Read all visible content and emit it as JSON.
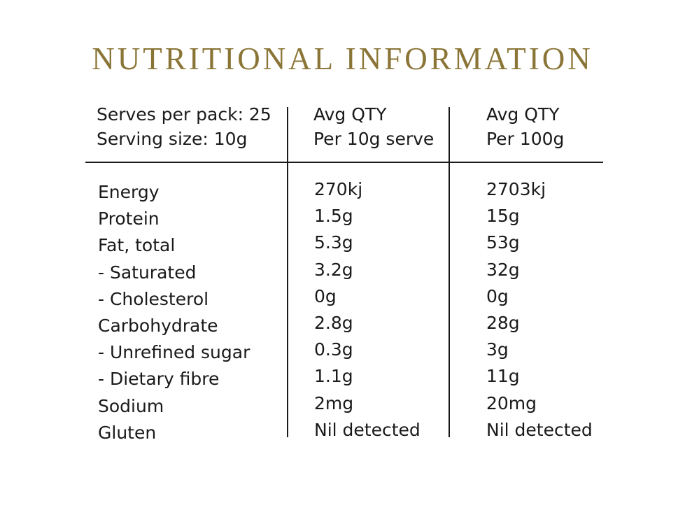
{
  "title": "NUTRITIONAL INFORMATION",
  "header": {
    "col1": [
      "Serves per pack: 25",
      "Serving size: 10g"
    ],
    "col2": [
      "Avg QTY",
      "Per 10g serve"
    ],
    "col3": [
      "Avg QTY",
      "Per 100g"
    ]
  },
  "rows": [
    {
      "label": "Energy",
      "per_serve": "270kj",
      "per_100g": "2703kj"
    },
    {
      "label": "Protein",
      "per_serve": "1.5g",
      "per_100g": "15g"
    },
    {
      "label": "Fat, total",
      "per_serve": "5.3g",
      "per_100g": "53g"
    },
    {
      "label": "- Saturated",
      "per_serve": "3.2g",
      "per_100g": "32g"
    },
    {
      "label": "- Cholesterol",
      "per_serve": "0g",
      "per_100g": "0g"
    },
    {
      "label": "Carbohydrate",
      "per_serve": "2.8g",
      "per_100g": "28g"
    },
    {
      "label": "- Unrefined sugar",
      "per_serve": "0.3g",
      "per_100g": "3g"
    },
    {
      "label": "- Dietary fibre",
      "per_serve": "1.1g",
      "per_100g": "11g"
    },
    {
      "label": "Sodium",
      "per_serve": "2mg",
      "per_100g": "20mg"
    },
    {
      "label": "Gluten",
      "per_serve": "Nil detected",
      "per_100g": "Nil detected"
    }
  ],
  "colors": {
    "title": "#8a7536",
    "text": "#1a1a1a",
    "background": "#ffffff"
  }
}
